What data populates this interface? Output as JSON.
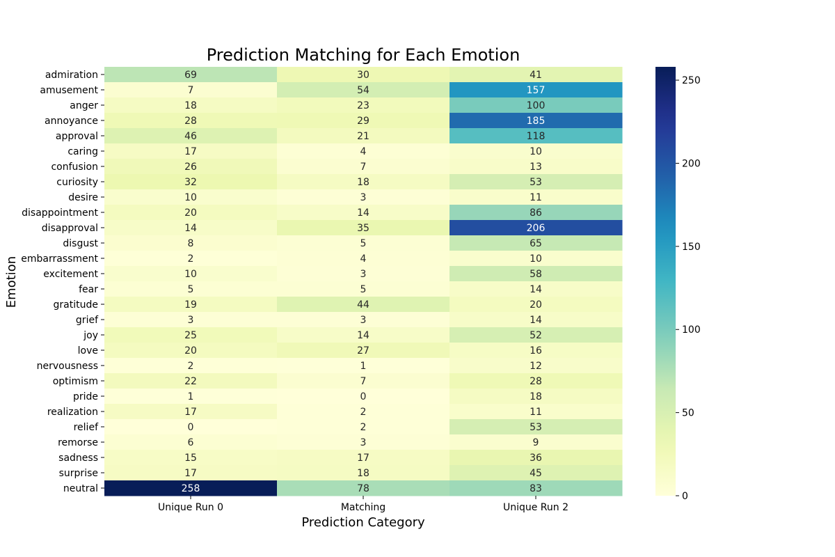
{
  "chart_data": {
    "type": "heatmap",
    "title": "Prediction Matching for Each Emotion",
    "xlabel": "Prediction Category",
    "ylabel": "Emotion",
    "columns": [
      "Unique Run 0",
      "Matching",
      "Unique Run 2"
    ],
    "rows": [
      "admiration",
      "amusement",
      "anger",
      "annoyance",
      "approval",
      "caring",
      "confusion",
      "curiosity",
      "desire",
      "disappointment",
      "disapproval",
      "disgust",
      "embarrassment",
      "excitement",
      "fear",
      "gratitude",
      "grief",
      "joy",
      "love",
      "nervousness",
      "optimism",
      "pride",
      "realization",
      "relief",
      "remorse",
      "sadness",
      "surprise",
      "neutral"
    ],
    "values": [
      [
        69,
        30,
        41
      ],
      [
        7,
        54,
        157
      ],
      [
        18,
        23,
        100
      ],
      [
        28,
        29,
        185
      ],
      [
        46,
        21,
        118
      ],
      [
        17,
        4,
        10
      ],
      [
        26,
        7,
        13
      ],
      [
        32,
        18,
        53
      ],
      [
        10,
        3,
        11
      ],
      [
        20,
        14,
        86
      ],
      [
        14,
        35,
        206
      ],
      [
        8,
        5,
        65
      ],
      [
        2,
        4,
        10
      ],
      [
        10,
        3,
        58
      ],
      [
        5,
        5,
        14
      ],
      [
        19,
        44,
        20
      ],
      [
        3,
        3,
        14
      ],
      [
        25,
        14,
        52
      ],
      [
        20,
        27,
        16
      ],
      [
        2,
        1,
        12
      ],
      [
        22,
        7,
        28
      ],
      [
        1,
        0,
        18
      ],
      [
        17,
        2,
        11
      ],
      [
        0,
        2,
        53
      ],
      [
        6,
        3,
        9
      ],
      [
        15,
        17,
        36
      ],
      [
        17,
        18,
        45
      ],
      [
        258,
        78,
        83
      ]
    ],
    "colormap": "YlGnBu",
    "vmin": 0,
    "vmax": 258,
    "colorbar_ticks": [
      0,
      50,
      100,
      150,
      200,
      250
    ]
  }
}
